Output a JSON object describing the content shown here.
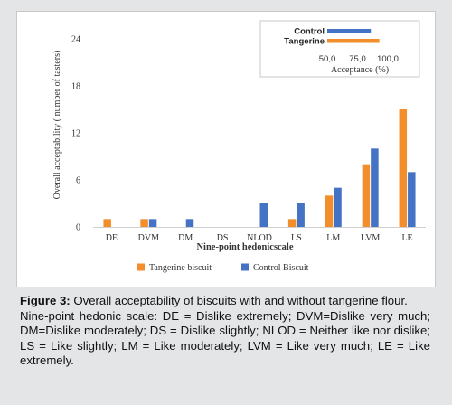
{
  "chart_data": {
    "type": "bar",
    "ylabel": "Overall acceptability ( number of tasters)",
    "xlabel": "Nine-point hedonicscale",
    "ylim": [
      0,
      24
    ],
    "yticks": [
      "0",
      "6",
      "12",
      "18",
      "24"
    ],
    "categories": [
      "DE",
      "DVM",
      "DM",
      "DS",
      "NLOD",
      "LS",
      "LM",
      "LVM",
      "LE"
    ],
    "series": [
      {
        "name": "Tangerine biscuit",
        "color": "#f28e2c",
        "values": [
          1,
          1,
          0,
          0,
          0,
          1,
          4,
          8,
          15
        ]
      },
      {
        "name": "Control Biscuit",
        "color": "#4472c4",
        "values": [
          0,
          1,
          1,
          0,
          3,
          3,
          5,
          10,
          7
        ]
      }
    ],
    "legend_position": "bottom",
    "inset": {
      "type": "bar",
      "orientation": "horizontal",
      "categories": [
        "Control",
        "Tangerine"
      ],
      "values": [
        86,
        93
      ],
      "colors": [
        "#4472c4",
        "#f28e2c"
      ],
      "xlim": [
        50,
        100
      ],
      "xticks": [
        "50,0",
        "75,0",
        "100,0"
      ],
      "xlabel": "Acceptance (%)"
    }
  },
  "caption": {
    "label": "Figure 3:",
    "text": " Overall acceptability of biscuits with and without tangerine flour.",
    "note": "Nine-point hedonic scale: DE = Dislike extremely; DVM=Dislike very much; DM=Dislike moderately; DS = Dislike slightly; NLOD = Neither like nor dislike; LS = Like slightly; LM = Like moderately; LVM = Like very much; LE = Like extremely."
  }
}
